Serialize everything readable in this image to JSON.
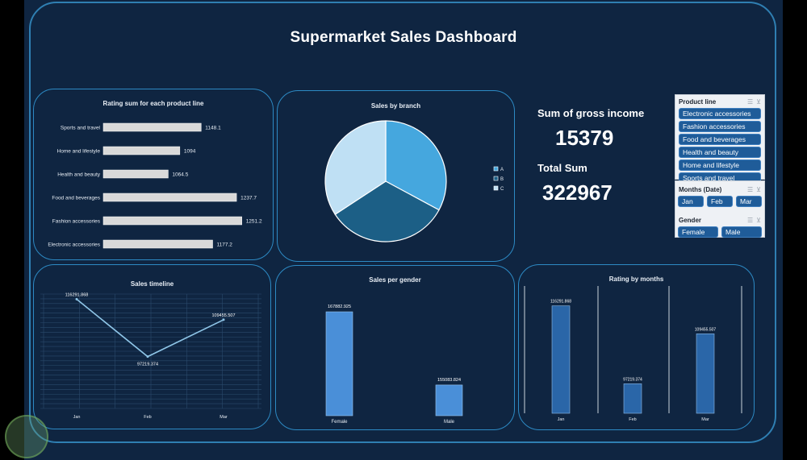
{
  "dashboard": {
    "title": "Supermarket Sales Dashboard"
  },
  "kpis": {
    "gross_income_label": "Sum of gross income",
    "gross_income_value": "15379",
    "total_label": "Total Sum",
    "total_value": "322967"
  },
  "slicers": {
    "product_line": {
      "title": "Product line",
      "items": [
        "Electronic accessories",
        "Fashion accessories",
        "Food and beverages",
        "Health and beauty",
        "Home and lifestyle",
        "Sports and travel"
      ]
    },
    "months": {
      "title": "Months (Date)",
      "items": [
        "Jan",
        "Feb",
        "Mar"
      ]
    },
    "gender": {
      "title": "Gender",
      "items": [
        "Female",
        "Male"
      ]
    },
    "icons": {
      "multiselect": "multi-select-icon",
      "clear": "clear-filter-icon"
    }
  },
  "colors": {
    "background": "#0f2541",
    "border": "#2d8ac4",
    "bar_gray": "#d9d9d9",
    "bar_gender": "#4a8fd8",
    "bar_months": "#2a66a8",
    "pie_a": "#45a7de",
    "pie_b": "#1c5f86",
    "pie_c": "#bfe0f4",
    "line": "#8fc6e8"
  },
  "chart_data": [
    {
      "id": "rating",
      "type": "bar",
      "orientation": "horizontal",
      "title": "Rating sum for each product line",
      "categories": [
        "Sports and travel",
        "Home and lifestyle",
        "Health and beauty",
        "Food and beverages",
        "Fashion accessories",
        "Electronic accessories"
      ],
      "values": [
        1148.1,
        1094,
        1064.5,
        1237.7,
        1251.2,
        1177.2
      ],
      "labels": [
        "1148.1",
        "1094",
        "1064.5",
        "1237.7",
        "1251.2",
        "1177.2"
      ],
      "xlim": [
        900,
        1260
      ],
      "grid": false
    },
    {
      "id": "branch",
      "type": "pie",
      "title": "Sales by branch",
      "categories": [
        "A",
        "B",
        "C"
      ],
      "values": [
        106200.37,
        106197.67,
        110568.71
      ],
      "legend": "right"
    },
    {
      "id": "timeline",
      "type": "line",
      "title": "Sales timeline",
      "categories": [
        "Jan",
        "Feb",
        "Mar"
      ],
      "values": [
        116291.868,
        97219.374,
        109455.507
      ],
      "labels": [
        "116291.868",
        "97219.374",
        "109455.507"
      ],
      "ylim": [
        80000,
        118000
      ],
      "grid": true
    },
    {
      "id": "gender",
      "type": "bar",
      "title": "Sales per gender",
      "categories": [
        "Female",
        "Male"
      ],
      "values": [
        167882.925,
        155083.824
      ],
      "labels": [
        "167882.925",
        "155083.824"
      ],
      "ylim": [
        150000,
        170000
      ],
      "grid": false
    },
    {
      "id": "months",
      "type": "bar",
      "title": "Rating by months",
      "categories": [
        "Jan",
        "Feb",
        "Mar"
      ],
      "values": [
        116291.868,
        97219.374,
        109455.507
      ],
      "labels": [
        "116291.868",
        "97219.374",
        "109455.507"
      ],
      "ylim": [
        90000,
        118000
      ],
      "grid": false
    }
  ]
}
